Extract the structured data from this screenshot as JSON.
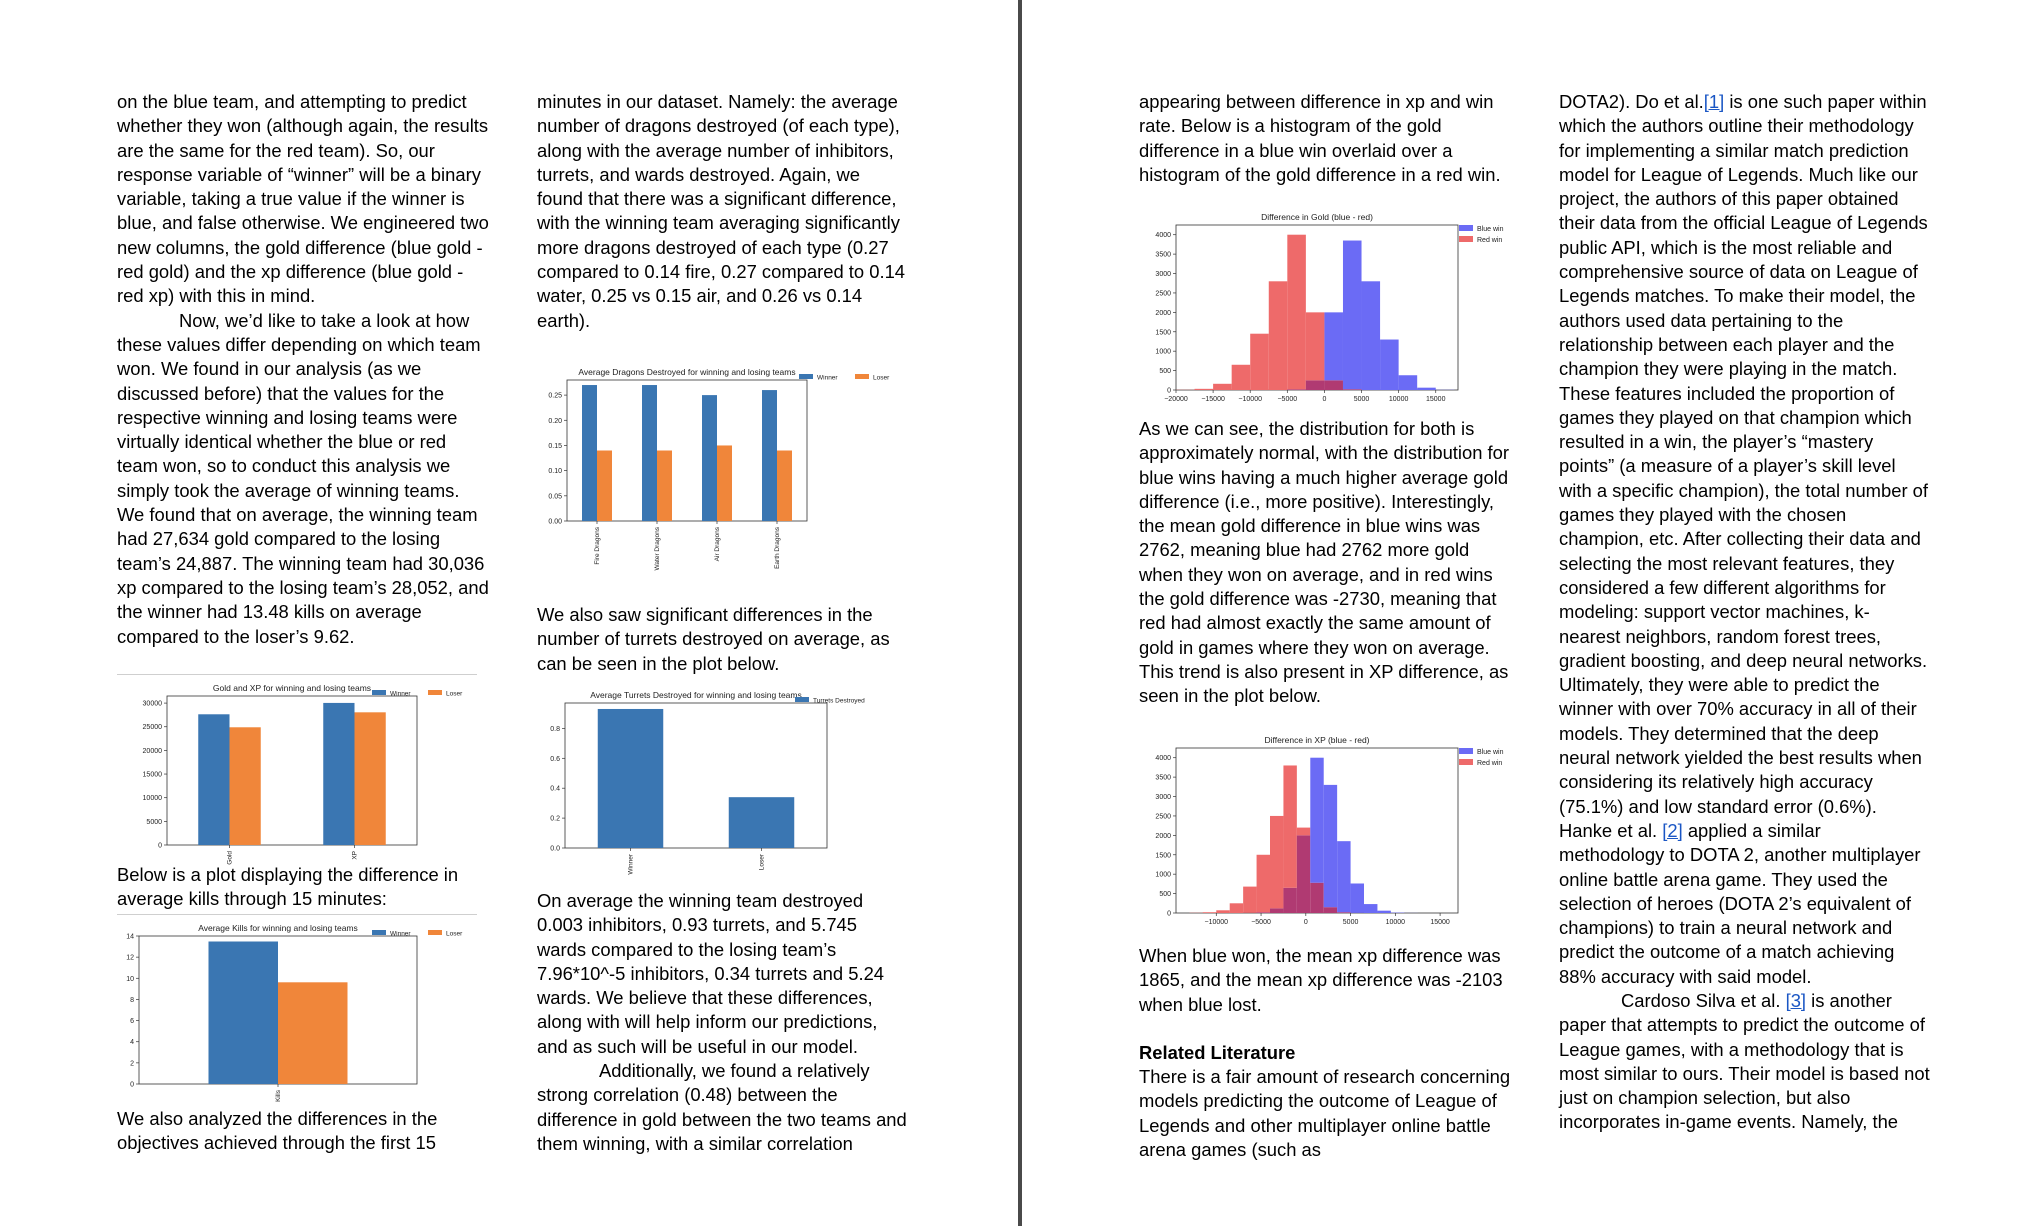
{
  "left_page": {
    "col1": {
      "p1": "on the blue team, and attempting to predict whether they won (although again, the results are the same for the red team). So, our response variable of “winner” will be a binary variable, taking a true value if the winner is blue, and false otherwise. We engineered two new columns, the gold difference (blue gold - red gold) and the xp difference (blue gold - red xp) with this in mind.",
      "p2": "Now, we’d like to take a look at how these values differ depending on which team won. We found in our analysis (as we discussed before) that the values for the respective winning and losing teams were virtually identical whether the blue or red team won, so to conduct this analysis we simply took the average of winning teams. We found that on average, the winning team had 27,634 gold compared to the losing team’s 24,887. The winning team had 30,036 xp compared to the losing team’s 28,052, and the winner had 13.48 kills on average compared to the loser’s 9.62.",
      "p3": "Below is a plot displaying the difference in average kills through 15 minutes:",
      "p4": "We also analyzed the differences in the objectives achieved through the first 15"
    },
    "col2": {
      "p1": "minutes in our dataset. Namely: the average number of dragons destroyed (of each type), along with the average number of inhibitors, turrets, and wards destroyed. Again, we found that there was a significant difference, with the winning team averaging significantly more dragons destroyed of each type (0.27 compared to 0.14 fire, 0.27 compared to 0.14 water, 0.25 vs 0.15 air, and 0.26 vs 0.14 earth).",
      "p2": "We also saw significant differences in the number of turrets destroyed on average, as can be seen in the plot below.",
      "p3": "On average the winning team destroyed 0.003 inhibitors, 0.93 turrets, and 5.745 wards compared to the losing team’s 7.96*10^-5 inhibitors, 0.34 turrets and 5.24 wards. We believe that these differences, along with will help inform our predictions, and as such will be useful in our model.",
      "p4": "Additionally, we found a relatively strong correlation (0.48) between the difference in gold between the two teams and them winning, with a similar correlation"
    }
  },
  "right_page": {
    "col1": {
      "p1": "appearing between difference in xp and win rate. Below is a histogram of the gold difference in a blue win overlaid over a histogram of the gold difference in a red win.",
      "p2": "As we can see, the distribution for both is approximately normal, with the distribution for blue wins having a much higher average gold difference (i.e., more positive). Interestingly, the mean gold difference in blue wins was 2762, meaning blue had 2762 more gold when they won on average, and in red wins the gold difference was -2730, meaning that red had almost exactly the same amount of gold in games where they won on average. This trend is also present in XP difference, as seen in the plot below.",
      "p3": "When blue won, the mean xp difference was 1865, and the mean xp difference was -2103 when blue lost.",
      "heading": "Related Literature",
      "p4": "There is a fair amount of research concerning models predicting the outcome of League of Legends and other multiplayer online battle arena games (such as"
    },
    "col2": {
      "p1a": "DOTA2). Do et al.",
      "ref1": "[1]",
      "p1b": " is one such paper within which the authors outline their methodology for implementing a similar match prediction model for League of Legends. Much like our project, the authors of this paper obtained their data from the official League of Legends public API, which is the most reliable and comprehensive source of data on League of Legends matches. To make their model, the authors used data pertaining to the relationship between each player and the champion they were playing in the match. These features included the proportion of games they played on that champion which resulted in a win, the player’s “mastery points” (a measure of a player’s skill level with a specific champion), the total number of games they played with the chosen champion, etc. After collecting their data and selecting the most relevant features, they considered a few different algorithms for modeling: support vector machines, k-nearest neighbors, random forest trees, gradient boosting, and deep neural networks. Ultimately, they were able to predict the winner with over 70% accuracy in all of their models. They determined that the deep neural network yielded the best results when considering its relatively high accuracy (75.1%) and low standard error (0.6%). Hanke et al. ",
      "ref2": "[2]",
      "p1c": " applied a similar methodology to DOTA 2, another multiplayer online battle arena game. They used the selection of heroes (DOTA 2’s equivalent of champions) to train a neural network and predict the outcome of a match achieving 88% accuracy with said model.",
      "p2a": "Cardoso Silva et al. ",
      "ref3": "[3]",
      "p2b": " is another paper that attempts to predict the outcome of League games, with a methodology that is most similar to ours. Their model is based not just on champion selection, but also incorporates in-game events. Namely, the"
    }
  },
  "colors": {
    "winner": "#3a76b2",
    "loser": "#f0863a",
    "blue_win": "#6b6bf5",
    "red_win": "#ee6a6a",
    "overlap": "#b03a72",
    "link": "#1a56c4"
  },
  "chart_data": [
    {
      "id": "gold_xp",
      "type": "bar",
      "title": "Gold and XP for winning and losing teams",
      "categories": [
        "Gold",
        "XP"
      ],
      "series": [
        {
          "name": "Winner",
          "values": [
            27634,
            30036
          ]
        },
        {
          "name": "Loser",
          "values": [
            24887,
            28052
          ]
        }
      ],
      "ylim": [
        0,
        31500
      ],
      "yticks": [
        "0",
        "5000",
        "10000",
        "15000",
        "20000",
        "25000",
        "30000"
      ],
      "legend": "top-right"
    },
    {
      "id": "kills",
      "type": "bar",
      "title": "Average Kills for winning and losing teams",
      "categories": [
        "Kills"
      ],
      "series": [
        {
          "name": "Winner",
          "values": [
            13.48
          ]
        },
        {
          "name": "Loser",
          "values": [
            9.62
          ]
        }
      ],
      "ylim": [
        0,
        14
      ],
      "yticks": [
        "0",
        "2",
        "4",
        "6",
        "8",
        "10",
        "12",
        "14"
      ],
      "legend": "top-right"
    },
    {
      "id": "dragons",
      "type": "bar",
      "title": "Average Dragons Destroyed for winning and losing teams",
      "categories": [
        "Fire Dragons",
        "Water Dragons",
        "Air Dragons",
        "Earth Dragons"
      ],
      "series": [
        {
          "name": "Winner",
          "values": [
            0.27,
            0.27,
            0.25,
            0.26
          ]
        },
        {
          "name": "Loser",
          "values": [
            0.14,
            0.14,
            0.15,
            0.14
          ]
        }
      ],
      "ylim": [
        0,
        0.28
      ],
      "yticks": [
        "0.00",
        "0.05",
        "0.10",
        "0.15",
        "0.20",
        "0.25"
      ],
      "legend": "top-right"
    },
    {
      "id": "turrets",
      "type": "bar",
      "title": "Average Turrets Destroyed for winning and losing teams",
      "categories": [
        "Winner",
        "Loser"
      ],
      "series": [
        {
          "name": "Turrets Destroyed",
          "values": [
            0.93,
            0.34
          ]
        }
      ],
      "ylim": [
        0,
        0.97
      ],
      "yticks": [
        "0.0",
        "0.2",
        "0.4",
        "0.6",
        "0.8"
      ],
      "legend": "top-right"
    },
    {
      "id": "gold_hist",
      "type": "bar",
      "title": "Difference in Gold (blue - red)",
      "bin_edges": [
        -20000,
        -17500,
        -15000,
        -12500,
        -10000,
        -7500,
        -5000,
        -2500,
        0,
        2500,
        5000,
        7500,
        10000,
        12500,
        15000,
        17500
      ],
      "series": [
        {
          "name": "Blue win",
          "values": [
            0,
            0,
            0,
            0,
            0,
            0,
            20,
            250,
            2000,
            3850,
            2800,
            1300,
            380,
            60,
            5
          ]
        },
        {
          "name": "Red win",
          "values": [
            5,
            30,
            160,
            650,
            1450,
            2800,
            4000,
            2000,
            250,
            20,
            0,
            0,
            0,
            0,
            0
          ]
        }
      ],
      "xticks": [
        "−20000",
        "−15000",
        "−10000",
        "−5000",
        "0",
        "5000",
        "10000",
        "15000"
      ],
      "xtick_values": [
        -20000,
        -15000,
        -10000,
        -5000,
        0,
        5000,
        10000,
        15000
      ],
      "xlim": [
        -20000,
        18000
      ],
      "ylim": [
        0,
        4250
      ],
      "yticks": [
        "0",
        "500",
        "1000",
        "1500",
        "2000",
        "2500",
        "3000",
        "3500",
        "4000"
      ],
      "legend": "top-right"
    },
    {
      "id": "xp_hist",
      "type": "bar",
      "title": "Difference in XP (blue - red)",
      "bin_edges": [
        -13000,
        -11500,
        -10000,
        -8500,
        -7000,
        -5500,
        -4000,
        -2500,
        -1000,
        500,
        2000,
        3500,
        5000,
        6500,
        8000,
        9500,
        11000,
        12500
      ],
      "series": [
        {
          "name": "Blue win",
          "values": [
            0,
            0,
            0,
            0,
            5,
            20,
            120,
            650,
            2000,
            4000,
            3300,
            1850,
            760,
            230,
            60,
            10,
            2
          ]
        },
        {
          "name": "Red win",
          "values": [
            5,
            20,
            70,
            250,
            680,
            1500,
            2500,
            3800,
            2200,
            780,
            150,
            20,
            3,
            0,
            0,
            0,
            0
          ]
        }
      ],
      "xticks": [
        "−10000",
        "−5000",
        "0",
        "5000",
        "10000",
        "15000"
      ],
      "xtick_values": [
        -10000,
        -5000,
        0,
        5000,
        10000,
        15000
      ],
      "xlim": [
        -14500,
        17000
      ],
      "ylim": [
        0,
        4250
      ],
      "yticks": [
        "0",
        "500",
        "1000",
        "1500",
        "2000",
        "2500",
        "3000",
        "3500",
        "4000"
      ],
      "legend": "top-right"
    }
  ]
}
